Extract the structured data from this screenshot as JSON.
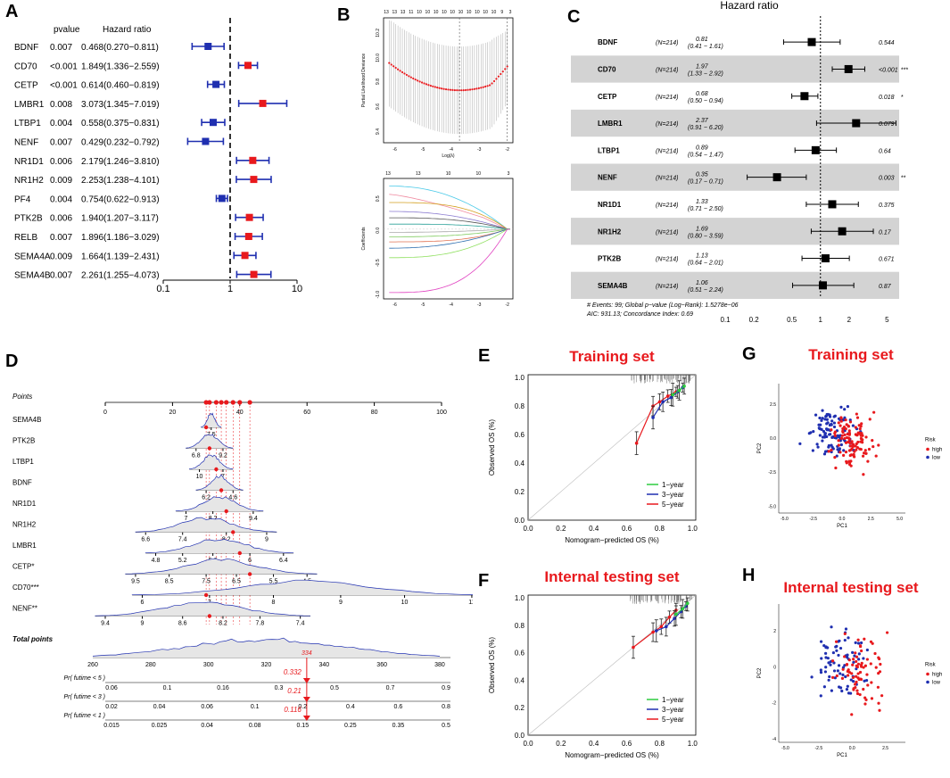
{
  "labels": {
    "A": "A",
    "B": "B",
    "C": "C",
    "D": "D",
    "E": "E",
    "F": "F",
    "G": "G",
    "H": "H"
  },
  "colors": {
    "blue": "#1f2fb0",
    "red": "#e8191d",
    "gray_row": "#d3d3d3",
    "green": "#2ecc40"
  },
  "chart_data": [
    {
      "id": "A",
      "type": "forest",
      "col_pvalue": "pvalue",
      "col_hr": "Hazard ratio",
      "xlabel": "Hazard ratio",
      "xscale": "log",
      "xlim": [
        0.1,
        10
      ],
      "ticks": [
        "0.1",
        "1",
        "10"
      ],
      "rows": [
        {
          "gene": "BDNF",
          "p": "0.007",
          "hr_text": "0.468(0.270−0.811)",
          "hr": 0.468,
          "lo": 0.27,
          "hi": 0.811,
          "risk": "low"
        },
        {
          "gene": "CD70",
          "p": "<0.001",
          "hr_text": "1.849(1.336−2.559)",
          "hr": 1.849,
          "lo": 1.336,
          "hi": 2.559,
          "risk": "high"
        },
        {
          "gene": "CETP",
          "p": "<0.001",
          "hr_text": "0.614(0.460−0.819)",
          "hr": 0.614,
          "lo": 0.46,
          "hi": 0.819,
          "risk": "low"
        },
        {
          "gene": "LMBR1",
          "p": "0.008",
          "hr_text": "3.073(1.345−7.019)",
          "hr": 3.073,
          "lo": 1.345,
          "hi": 7.019,
          "risk": "high"
        },
        {
          "gene": "LTBP1",
          "p": "0.004",
          "hr_text": "0.558(0.375−0.831)",
          "hr": 0.558,
          "lo": 0.375,
          "hi": 0.831,
          "risk": "low"
        },
        {
          "gene": "NENF",
          "p": "0.007",
          "hr_text": "0.429(0.232−0.792)",
          "hr": 0.429,
          "lo": 0.232,
          "hi": 0.792,
          "risk": "low"
        },
        {
          "gene": "NR1D1",
          "p": "0.006",
          "hr_text": "2.179(1.246−3.810)",
          "hr": 2.179,
          "lo": 1.246,
          "hi": 3.81,
          "risk": "high"
        },
        {
          "gene": "NR1H2",
          "p": "0.009",
          "hr_text": "2.253(1.238−4.101)",
          "hr": 2.253,
          "lo": 1.238,
          "hi": 4.101,
          "risk": "high"
        },
        {
          "gene": "PF4",
          "p": "0.004",
          "hr_text": "0.754(0.622−0.913)",
          "hr": 0.754,
          "lo": 0.622,
          "hi": 0.913,
          "risk": "low"
        },
        {
          "gene": "PTK2B",
          "p": "0.006",
          "hr_text": "1.940(1.207−3.117)",
          "hr": 1.94,
          "lo": 1.207,
          "hi": 3.117,
          "risk": "high"
        },
        {
          "gene": "RELB",
          "p": "0.007",
          "hr_text": "1.896(1.186−3.029)",
          "hr": 1.896,
          "lo": 1.186,
          "hi": 3.029,
          "risk": "high"
        },
        {
          "gene": "SEMA4A",
          "p": "0.009",
          "hr_text": "1.664(1.139−2.431)",
          "hr": 1.664,
          "lo": 1.139,
          "hi": 2.431,
          "risk": "high"
        },
        {
          "gene": "SEMA4B",
          "p": "0.007",
          "hr_text": "2.261(1.255−4.073)",
          "hr": 2.261,
          "lo": 1.255,
          "hi": 4.073,
          "risk": "high"
        }
      ]
    },
    {
      "id": "B",
      "type": "lasso",
      "top": {
        "ylabel": "Partial Likelihood Deviance",
        "xlabel": "Log(λ)",
        "xticks": [
          "-6",
          "-5",
          "-4",
          "-3",
          "-2"
        ],
        "yticks": [
          "9.4",
          "9.6",
          "9.8",
          "10.0",
          "10.2"
        ],
        "xlim": [
          -6.4,
          -1.8
        ],
        "ylim": [
          9.3,
          10.3
        ],
        "top_counts": [
          "13",
          "13",
          "13",
          "11",
          "10",
          "10",
          "10",
          "10",
          "10",
          "10",
          "10",
          "10",
          "10",
          "10",
          "9",
          "3"
        ],
        "lambda_min": -3.7,
        "lambda_1se": -2.0
      },
      "bottom": {
        "ylabel": "Coefficients",
        "xlabel": "Log Lambda",
        "xticks": [
          "-6",
          "-5",
          "-4",
          "-3",
          "-2"
        ],
        "yticks": [
          "-1.0",
          "-0.5",
          "0.0",
          "0.5"
        ],
        "top_counts": [
          "13",
          "13",
          "10",
          "10",
          "3"
        ],
        "xlim": [
          -6.4,
          -1.8
        ],
        "ylim": [
          -1.1,
          0.8
        ]
      }
    },
    {
      "id": "C",
      "type": "forest",
      "title": "Hazard ratio",
      "footer1": "# Events: 99; Global p−value (Log−Rank): 1.5278e−06",
      "footer2": "AIC: 931.13; Concordance Index: 0.69",
      "xticks": [
        "0.1",
        "0.2",
        "0.5",
        "1",
        "2",
        "5"
      ],
      "xlim": [
        0.1,
        7
      ],
      "rows": [
        {
          "gene": "BDNF",
          "n": "(N=214)",
          "hr_text": "0.81",
          "ci_text": "(0.41 − 1.61)",
          "p_text": "0.544",
          "stars": "",
          "hr": 0.81,
          "lo": 0.41,
          "hi": 1.61
        },
        {
          "gene": "CD70",
          "n": "(N=214)",
          "hr_text": "1.97",
          "ci_text": "(1.33 − 2.92)",
          "p_text": "<0.001",
          "stars": "***",
          "hr": 1.97,
          "lo": 1.33,
          "hi": 2.92
        },
        {
          "gene": "CETP",
          "n": "(N=214)",
          "hr_text": "0.68",
          "ci_text": "(0.50 − 0.94)",
          "p_text": "0.018",
          "stars": "*",
          "hr": 0.68,
          "lo": 0.5,
          "hi": 0.94
        },
        {
          "gene": "LMBR1",
          "n": "(N=214)",
          "hr_text": "2.37",
          "ci_text": "(0.91 − 6.20)",
          "p_text": "0.079",
          "stars": "",
          "hr": 2.37,
          "lo": 0.91,
          "hi": 6.2
        },
        {
          "gene": "LTBP1",
          "n": "(N=214)",
          "hr_text": "0.89",
          "ci_text": "(0.54 − 1.47)",
          "p_text": "0.64",
          "stars": "",
          "hr": 0.89,
          "lo": 0.54,
          "hi": 1.47
        },
        {
          "gene": "NENF",
          "n": "(N=214)",
          "hr_text": "0.35",
          "ci_text": "(0.17 − 0.71)",
          "p_text": "0.003",
          "stars": "**",
          "hr": 0.35,
          "lo": 0.17,
          "hi": 0.71
        },
        {
          "gene": "NR1D1",
          "n": "(N=214)",
          "hr_text": "1.33",
          "ci_text": "(0.71 − 2.50)",
          "p_text": "0.375",
          "stars": "",
          "hr": 1.33,
          "lo": 0.71,
          "hi": 2.5
        },
        {
          "gene": "NR1H2",
          "n": "(N=214)",
          "hr_text": "1.69",
          "ci_text": "(0.80 − 3.59)",
          "p_text": "0.17",
          "stars": "",
          "hr": 1.69,
          "lo": 0.8,
          "hi": 3.59
        },
        {
          "gene": "PTK2B",
          "n": "(N=214)",
          "hr_text": "1.13",
          "ci_text": "(0.64 − 2.01)",
          "p_text": "0.671",
          "stars": "",
          "hr": 1.13,
          "lo": 0.64,
          "hi": 2.01
        },
        {
          "gene": "SEMA4B",
          "n": "(N=214)",
          "hr_text": "1.06",
          "ci_text": "(0.51 − 2.24)",
          "p_text": "0.87",
          "stars": "",
          "hr": 1.06,
          "lo": 0.51,
          "hi": 2.24
        }
      ]
    },
    {
      "id": "D",
      "type": "nomogram",
      "points_label": "Points",
      "points_ticks": [
        "0",
        "20",
        "40",
        "60",
        "80",
        "100"
      ],
      "point_markers": [
        30,
        31,
        33,
        34.5,
        36,
        38,
        40,
        43
      ],
      "vars": [
        {
          "name": "SEMA4B",
          "ticks": [
            "7.5"
          ],
          "tickpos": [
            31.5
          ]
        },
        {
          "name": "PTK2B",
          "ticks": [
            "6.8",
            "9.2"
          ],
          "tickpos": [
            27,
            35
          ]
        },
        {
          "name": "LTBP1",
          "ticks": [
            "10",
            "7"
          ],
          "tickpos": [
            28,
            35
          ]
        },
        {
          "name": "BDNF",
          "ticks": [
            "6.2",
            "4.6"
          ],
          "tickpos": [
            30,
            38
          ]
        },
        {
          "name": "NR1D1",
          "ticks": [
            "7",
            "8.2",
            "9.4"
          ],
          "tickpos": [
            24,
            32,
            44
          ]
        },
        {
          "name": "NR1H2",
          "ticks": [
            "6.6",
            "7.4",
            "8.2",
            "9"
          ],
          "tickpos": [
            12,
            23,
            36,
            48
          ]
        },
        {
          "name": "LMBR1",
          "ticks": [
            "4.8",
            "5.2",
            "5.6",
            "6",
            "6.4"
          ],
          "tickpos": [
            15,
            23,
            32,
            43,
            53
          ]
        },
        {
          "name": "CETP*",
          "ticks": [
            "9.5",
            "8.5",
            "7.5",
            "6.5",
            "5.5",
            "4.5"
          ],
          "tickpos": [
            9,
            19,
            30,
            39,
            50,
            60
          ]
        },
        {
          "name": "CD70***",
          "ticks": [
            "6",
            "7",
            "8",
            "9",
            "10",
            "11"
          ],
          "tickpos": [
            11,
            31,
            50,
            70,
            89,
            109
          ]
        },
        {
          "name": "NENF**",
          "ticks": [
            "9.4",
            "9",
            "8.6",
            "8.2",
            "7.8",
            "7.4"
          ],
          "tickpos": [
            0,
            11,
            23,
            35,
            46,
            58
          ]
        }
      ],
      "total_label": "Total points",
      "total_ticks": [
        "260",
        "280",
        "300",
        "320",
        "340",
        "360",
        "380"
      ],
      "total_value": "334",
      "prob_rows": [
        {
          "label": "Pr( futime < 5 )",
          "ticks": [
            "0.06",
            "0.1",
            "0.16",
            "0.3",
            "0.5",
            "0.7",
            "0.9"
          ],
          "value": "0.332"
        },
        {
          "label": "Pr( futime < 3 )",
          "ticks": [
            "0.02",
            "0.04",
            "0.06",
            "0.1",
            "0.2",
            "0.4",
            "0.6",
            "0.8"
          ],
          "value": "0.21"
        },
        {
          "label": "Pr( futime < 1 )",
          "ticks": [
            "0.015",
            "0.025",
            "0.04",
            "0.08",
            "0.15",
            "0.25",
            "0.35",
            "0.5"
          ],
          "value": "0.116"
        }
      ]
    },
    {
      "id": "E",
      "type": "calibration",
      "title": "Training set",
      "xlabel": "Nomogram−predicted OS (%)",
      "ylabel": "Observed OS (%)",
      "ticks": [
        "0.0",
        "0.2",
        "0.4",
        "0.6",
        "0.8",
        "1.0"
      ],
      "legend": [
        "1−year",
        "3−year",
        "5−year"
      ],
      "series": [
        {
          "name": "1−year",
          "color": "#2ecc40",
          "x": [
            0.88,
            0.92,
            0.95
          ],
          "y": [
            0.88,
            0.91,
            0.94
          ]
        },
        {
          "name": "3−year",
          "color": "#1f2fb0",
          "x": [
            0.76,
            0.82,
            0.87,
            0.91,
            0.94
          ],
          "y": [
            0.72,
            0.83,
            0.86,
            0.9,
            0.93
          ]
        },
        {
          "name": "5−year",
          "color": "#e8191d",
          "x": [
            0.66,
            0.76,
            0.8,
            0.85,
            0.9
          ],
          "y": [
            0.54,
            0.8,
            0.83,
            0.87,
            0.9
          ]
        }
      ]
    },
    {
      "id": "F",
      "type": "calibration",
      "title": "Internal testing set",
      "xlabel": "Nomogram−predicted OS (%)",
      "ylabel": "Observed OS (%)",
      "ticks": [
        "0.0",
        "0.2",
        "0.4",
        "0.6",
        "0.8",
        "1.0"
      ],
      "legend": [
        "1−year",
        "3−year",
        "5−year"
      ],
      "series": [
        {
          "name": "1−year",
          "color": "#2ecc40",
          "x": [
            0.9,
            0.94,
            0.97
          ],
          "y": [
            0.88,
            0.92,
            0.96
          ]
        },
        {
          "name": "3−year",
          "color": "#1f2fb0",
          "x": [
            0.78,
            0.84,
            0.89,
            0.93,
            0.96
          ],
          "y": [
            0.76,
            0.79,
            0.85,
            0.9,
            0.94
          ]
        },
        {
          "name": "5−year",
          "color": "#e8191d",
          "x": [
            0.64,
            0.76,
            0.81,
            0.86,
            0.9
          ],
          "y": [
            0.64,
            0.75,
            0.79,
            0.86,
            0.91
          ]
        }
      ]
    },
    {
      "id": "G",
      "type": "scatter",
      "title": "Training set",
      "xlabel": "PC1",
      "ylabel": "PC2",
      "xticks": [
        "-5.0",
        "-2.5",
        "0.0",
        "2.5",
        "5.0"
      ],
      "yticks": [
        "-5.0",
        "-2.5",
        "0.0",
        "2.5"
      ],
      "xlim": [
        -5.5,
        5.5
      ],
      "ylim": [
        -5.5,
        4.0
      ],
      "legend_title": "Risk",
      "legend": [
        "high",
        "low"
      ],
      "n_high": 107,
      "n_low": 107
    },
    {
      "id": "H",
      "type": "scatter",
      "title": "Internal testing set",
      "xlabel": "PC1",
      "ylabel": "PC2",
      "xticks": [
        "-5.0",
        "-2.5",
        "0.0",
        "2.5"
      ],
      "yticks": [
        "-4",
        "-2",
        "0",
        "2"
      ],
      "xlim": [
        -5.5,
        4.0
      ],
      "ylim": [
        -4.2,
        3.5
      ],
      "legend_title": "Risk",
      "legend": [
        "high",
        "low"
      ],
      "n_high": 75,
      "n_low": 75
    }
  ]
}
